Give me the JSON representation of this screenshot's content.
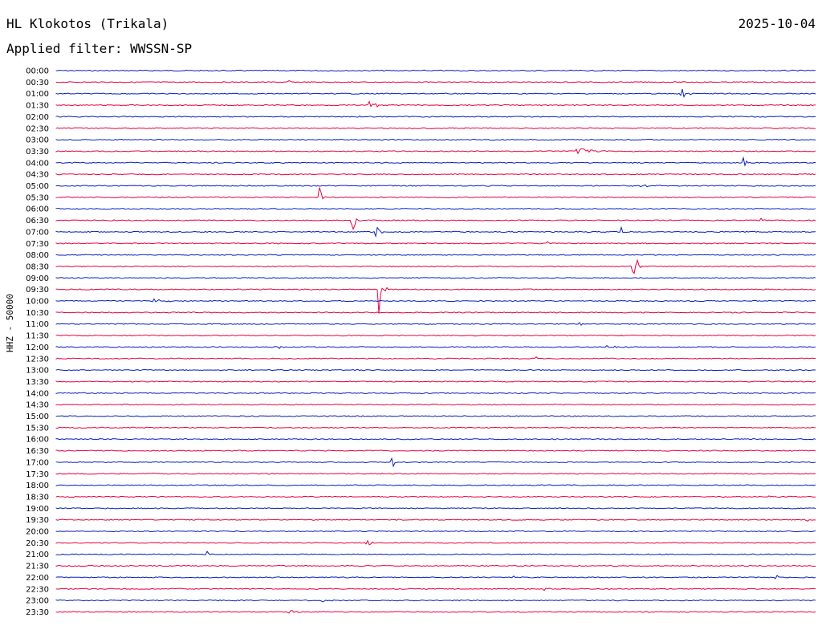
{
  "header": {
    "station": "HL Klokotos (Trikala)",
    "date": "2025-10-04",
    "filter": "Applied filter: WWSSN-SP"
  },
  "axis": {
    "channel_label": "HHZ - 50000"
  },
  "colors": {
    "even_trace": "#0a1fbf",
    "odd_trace": "#e8003f",
    "background": "#ffffff"
  },
  "traces": [
    {
      "label": "00:00",
      "events": [
        {
          "x": 665,
          "amp": 4,
          "dur": 4
        }
      ]
    },
    {
      "label": "00:30",
      "events": [
        {
          "x": 362,
          "amp": 2,
          "dur": 3
        }
      ]
    },
    {
      "label": "01:00",
      "events": [
        {
          "x": 850,
          "amp": 7,
          "dur": 22
        }
      ]
    },
    {
      "label": "01:30",
      "events": [
        {
          "x": 462,
          "amp": 6,
          "dur": 20
        }
      ]
    },
    {
      "label": "02:00",
      "events": [
        {
          "x": 450,
          "amp": 2,
          "dur": 4
        }
      ]
    },
    {
      "label": "02:30",
      "events": []
    },
    {
      "label": "03:00",
      "events": []
    },
    {
      "label": "03:30",
      "events": [
        {
          "x": 720,
          "amp": 4,
          "dur": 70
        }
      ]
    },
    {
      "label": "04:00",
      "events": [
        {
          "x": 925,
          "amp": 10,
          "dur": 12
        }
      ]
    },
    {
      "label": "04:30",
      "events": []
    },
    {
      "label": "05:00",
      "events": [
        {
          "x": 790,
          "amp": 2,
          "dur": 80
        }
      ]
    },
    {
      "label": "05:30",
      "events": [
        {
          "x": 398,
          "amp": 12,
          "dur": 10
        }
      ]
    },
    {
      "label": "06:00",
      "events": [
        {
          "x": 325,
          "amp": 2,
          "dur": 8
        }
      ]
    },
    {
      "label": "06:30",
      "events": [
        {
          "x": 440,
          "amp": 12,
          "dur": 10
        },
        {
          "x": 950,
          "amp": 4,
          "dur": 8
        }
      ]
    },
    {
      "label": "07:00",
      "events": [
        {
          "x": 470,
          "amp": 8,
          "dur": 10
        },
        {
          "x": 775,
          "amp": 6,
          "dur": 6
        }
      ]
    },
    {
      "label": "07:30",
      "events": [
        {
          "x": 683,
          "amp": 3,
          "dur": 4
        }
      ]
    },
    {
      "label": "08:00",
      "events": []
    },
    {
      "label": "08:30",
      "events": [
        {
          "x": 789,
          "amp": 30,
          "dur": 14
        }
      ]
    },
    {
      "label": "09:00",
      "events": []
    },
    {
      "label": "09:30",
      "events": [
        {
          "x": 473,
          "amp": 30,
          "dur": 10
        }
      ]
    },
    {
      "label": "10:00",
      "events": [
        {
          "x": 192,
          "amp": 3,
          "dur": 30
        }
      ]
    },
    {
      "label": "10:30",
      "events": []
    },
    {
      "label": "11:00",
      "events": [
        {
          "x": 722,
          "amp": 2,
          "dur": 18
        }
      ]
    },
    {
      "label": "11:30",
      "events": []
    },
    {
      "label": "12:00",
      "events": [
        {
          "x": 757,
          "amp": 2,
          "dur": 30
        },
        {
          "x": 350,
          "amp": 3,
          "dur": 3
        }
      ]
    },
    {
      "label": "12:30",
      "events": [
        {
          "x": 669,
          "amp": 3,
          "dur": 4
        }
      ]
    },
    {
      "label": "13:00",
      "events": []
    },
    {
      "label": "13:30",
      "events": []
    },
    {
      "label": "14:00",
      "events": []
    },
    {
      "label": "14:30",
      "events": [
        {
          "x": 155,
          "amp": 2,
          "dur": 10
        }
      ]
    },
    {
      "label": "15:00",
      "events": []
    },
    {
      "label": "15:30",
      "events": []
    },
    {
      "label": "16:00",
      "events": []
    },
    {
      "label": "16:30",
      "events": []
    },
    {
      "label": "17:00",
      "events": [
        {
          "x": 490,
          "amp": 6,
          "dur": 8
        }
      ]
    },
    {
      "label": "17:30",
      "events": [
        {
          "x": 188,
          "amp": 2,
          "dur": 14
        }
      ]
    },
    {
      "label": "18:00",
      "events": []
    },
    {
      "label": "18:30",
      "events": [
        {
          "x": 957,
          "amp": 5,
          "dur": 6
        }
      ]
    },
    {
      "label": "19:00",
      "events": []
    },
    {
      "label": "19:30",
      "events": [
        {
          "x": 1005,
          "amp": 2,
          "dur": 12
        }
      ]
    },
    {
      "label": "20:00",
      "events": []
    },
    {
      "label": "20:30",
      "events": [
        {
          "x": 457,
          "amp": 6,
          "dur": 14
        }
      ]
    },
    {
      "label": "21:00",
      "events": [
        {
          "x": 257,
          "amp": 6,
          "dur": 8
        }
      ]
    },
    {
      "label": "21:30",
      "events": []
    },
    {
      "label": "22:00",
      "events": [
        {
          "x": 641,
          "amp": 5,
          "dur": 2
        },
        {
          "x": 968,
          "amp": 3,
          "dur": 2
        }
      ]
    },
    {
      "label": "22:30",
      "events": [
        {
          "x": 680,
          "amp": 2,
          "dur": 8
        }
      ]
    },
    {
      "label": "23:00",
      "events": [
        {
          "x": 402,
          "amp": 3,
          "dur": 4
        }
      ]
    },
    {
      "label": "23:30",
      "events": [
        {
          "x": 362,
          "amp": 3,
          "dur": 16
        }
      ]
    }
  ]
}
